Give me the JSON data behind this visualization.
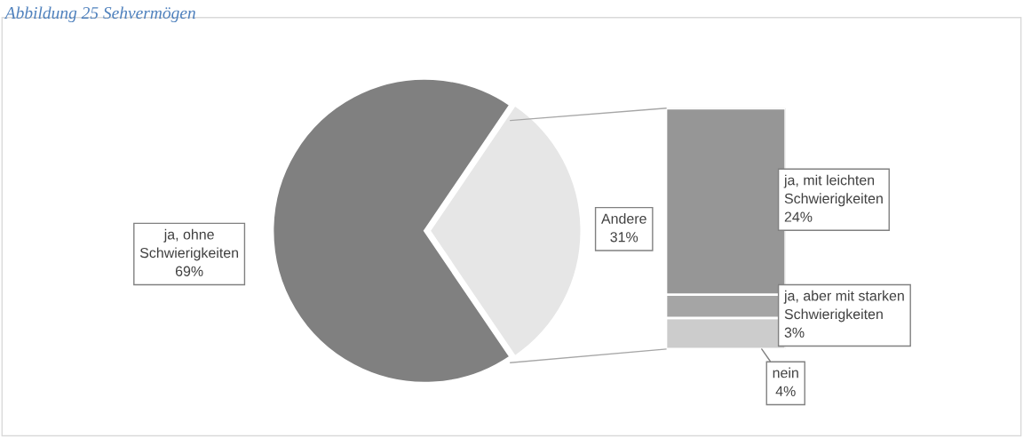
{
  "chart_data": [
    {
      "type": "pie",
      "title": "Abbildung 25 Sehvermögen",
      "categories": [
        "ja, ohne Schwierigkeiten",
        "Andere"
      ],
      "values": [
        69,
        31
      ],
      "value_labels": [
        "69%",
        "31%"
      ],
      "colors": [
        "#808080",
        "#e6e6e6"
      ]
    },
    {
      "type": "bar",
      "stacked": true,
      "categories": [
        null
      ],
      "series": [
        {
          "name": "nein",
          "color": "#cccccc",
          "values": [
            4
          ],
          "value_labels": [
            "4%"
          ]
        },
        {
          "name": "ja, aber mit starken Schwierigkeiten",
          "color": "#a5a5a5",
          "values": [
            3
          ],
          "value_labels": [
            "3%"
          ]
        },
        {
          "name": "ja, mit leichten Schwierigkeiten",
          "color": "#969696",
          "values": [
            24
          ],
          "value_labels": [
            "24%"
          ]
        }
      ]
    }
  ]
}
